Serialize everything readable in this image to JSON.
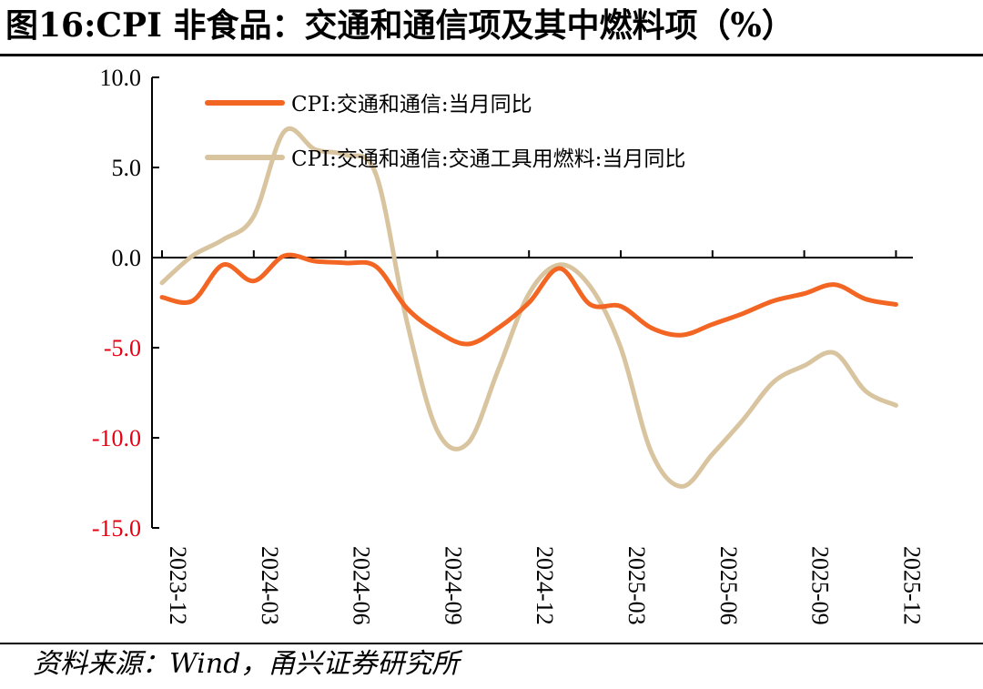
{
  "title": "图16:CPI 非食品：交通和通信项及其中燃料项（%）",
  "source": "资料来源：Wind，甬兴证券研究所",
  "chart_data": {
    "type": "line",
    "title": "图16:CPI 非食品：交通和通信项及其中燃料项（%）",
    "xlabel": "",
    "ylabel": "",
    "ylim": [
      -15,
      10
    ],
    "yticks": [
      10,
      5,
      0,
      -5,
      -10,
      -15
    ],
    "ytick_labels": [
      "10.0",
      "5.0",
      "0.0",
      "-5.0",
      "-10.0",
      "-15.0"
    ],
    "negative_tick_color": "#e60012",
    "positive_tick_color": "#000000",
    "x": [
      "2023-12",
      "2024-01",
      "2024-02",
      "2024-03",
      "2024-04",
      "2024-05",
      "2024-06",
      "2024-07",
      "2024-08",
      "2024-09",
      "2024-10",
      "2024-11",
      "2024-12",
      "2025-01",
      "2025-02",
      "2025-03",
      "2025-04",
      "2025-05",
      "2025-06",
      "2025-07",
      "2025-08",
      "2025-09",
      "2025-10",
      "2025-11",
      "2025-12"
    ],
    "x_tick_labels": [
      "2023-12",
      "2024-03",
      "2024-06",
      "2024-09",
      "2024-12",
      "2025-03",
      "2025-06",
      "2025-09",
      "2025-12"
    ],
    "grid": false,
    "legend": "top-left",
    "series": [
      {
        "name": "CPI:交通和通信:当月同比",
        "color": "#f26522",
        "values": [
          -2.2,
          -2.4,
          -0.4,
          -1.3,
          0.1,
          -0.2,
          -0.3,
          -0.5,
          -2.8,
          -4.1,
          -4.8,
          -3.9,
          -2.5,
          -0.6,
          -2.6,
          -2.7,
          -3.9,
          -4.3,
          -3.7,
          -3.1,
          -2.4,
          -2.0,
          -1.5,
          -2.3,
          -2.6
        ]
      },
      {
        "name": "CPI:交通和通信:交通工具用燃料:当月同比",
        "color": "#d9c4a0",
        "values": [
          -1.4,
          0.1,
          1.0,
          2.3,
          7.0,
          6.0,
          5.7,
          4.6,
          -3.5,
          -9.6,
          -10.3,
          -6.2,
          -2.0,
          -0.4,
          -1.6,
          -5.0,
          -10.8,
          -12.7,
          -10.9,
          -9.0,
          -6.9,
          -6.0,
          -5.3,
          -7.4,
          -8.2
        ]
      }
    ]
  }
}
